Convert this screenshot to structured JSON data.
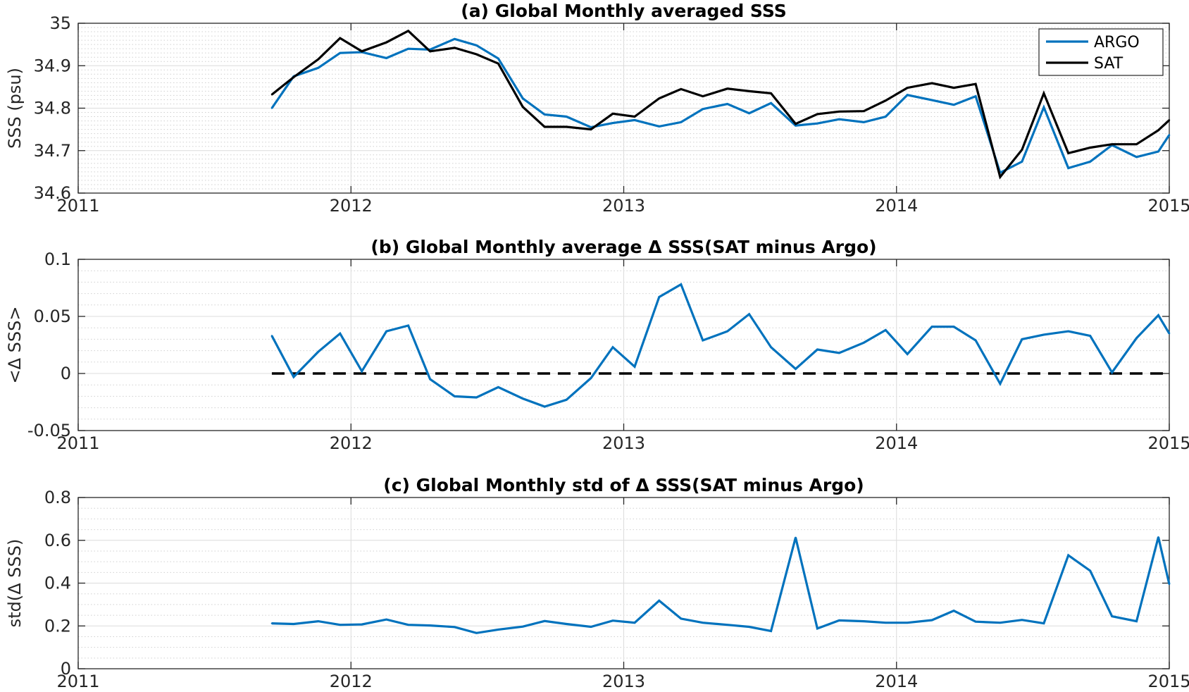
{
  "chart_data": [
    {
      "type": "line",
      "title": "(a) Global Monthly averaged SSS",
      "xlabel": "",
      "ylabel": "SSS (psu)",
      "xlim": [
        2011,
        2015
      ],
      "ylim": [
        34.6,
        35.0
      ],
      "xticks": [
        2011,
        2012,
        2013,
        2014,
        2015
      ],
      "xticklabels": [
        "2011",
        "2012",
        "2013",
        "2014",
        "2015"
      ],
      "yticks": [
        34.6,
        34.7,
        34.8,
        34.9,
        35.0
      ],
      "yticklabels": [
        "34.6",
        "34.7",
        "34.8",
        "34.9",
        "35"
      ],
      "grid": true,
      "legend": "top-right",
      "x": [
        2011.71,
        2011.79,
        2011.88,
        2011.96,
        2012.04,
        2012.13,
        2012.21,
        2012.29,
        2012.38,
        2012.46,
        2012.54,
        2012.63,
        2012.71,
        2012.79,
        2012.88,
        2012.96,
        2013.04,
        2013.13,
        2013.21,
        2013.29,
        2013.38,
        2013.46,
        2013.54,
        2013.63,
        2013.71,
        2013.79,
        2013.88,
        2013.96,
        2014.04,
        2014.13,
        2014.21,
        2014.29,
        2014.38,
        2014.46,
        2014.54,
        2014.63,
        2014.71,
        2014.79,
        2014.88,
        2014.96,
        2015.0
      ],
      "series": [
        {
          "name": "ARGO",
          "color": "#0072BD",
          "values": [
            34.8,
            34.875,
            34.895,
            34.93,
            34.932,
            34.918,
            34.94,
            34.938,
            34.963,
            34.948,
            34.917,
            34.823,
            34.785,
            34.78,
            34.755,
            34.765,
            34.772,
            34.757,
            34.767,
            34.798,
            34.81,
            34.788,
            34.812,
            34.759,
            34.764,
            34.774,
            34.767,
            34.78,
            34.831,
            34.819,
            34.808,
            34.828,
            34.648,
            34.674,
            34.802,
            34.659,
            34.674,
            34.713,
            34.685,
            34.698,
            34.737
          ]
        },
        {
          "name": "SAT",
          "color": "#000000",
          "values": [
            34.832,
            34.873,
            34.915,
            34.965,
            34.934,
            34.955,
            34.982,
            34.934,
            34.942,
            34.927,
            34.905,
            34.803,
            34.756,
            34.756,
            34.75,
            34.787,
            34.78,
            34.823,
            34.845,
            34.828,
            34.846,
            34.84,
            34.835,
            34.763,
            34.786,
            34.792,
            34.793,
            34.818,
            34.848,
            34.859,
            34.848,
            34.857,
            34.638,
            34.702,
            34.835,
            34.694,
            34.707,
            34.715,
            34.715,
            34.748,
            34.772
          ]
        }
      ]
    },
    {
      "type": "line",
      "title": "(b) Global Monthly average Δ SSS(SAT minus Argo)",
      "xlabel": "",
      "ylabel": "<Δ SSS>",
      "xlim": [
        2011,
        2015
      ],
      "ylim": [
        -0.05,
        0.1
      ],
      "xticks": [
        2011,
        2012,
        2013,
        2014,
        2015
      ],
      "xticklabels": [
        "2011",
        "2012",
        "2013",
        "2014",
        "2015"
      ],
      "yticks": [
        -0.05,
        0,
        0.05,
        0.1
      ],
      "yticklabels": [
        "-0.05",
        "0",
        "0.05",
        "0.1"
      ],
      "grid": true,
      "x": [
        2011.71,
        2011.79,
        2011.88,
        2011.96,
        2012.04,
        2012.13,
        2012.21,
        2012.29,
        2012.38,
        2012.46,
        2012.54,
        2012.63,
        2012.71,
        2012.79,
        2012.88,
        2012.96,
        2013.04,
        2013.13,
        2013.21,
        2013.29,
        2013.38,
        2013.46,
        2013.54,
        2013.63,
        2013.71,
        2013.79,
        2013.88,
        2013.96,
        2014.04,
        2014.13,
        2014.21,
        2014.29,
        2014.38,
        2014.46,
        2014.54,
        2014.63,
        2014.71,
        2014.79,
        2014.88,
        2014.96,
        2015.0
      ],
      "series": [
        {
          "color": "#0072BD",
          "values": [
            0.033,
            -0.003,
            0.019,
            0.035,
            0.002,
            0.037,
            0.042,
            -0.005,
            -0.02,
            -0.021,
            -0.012,
            -0.022,
            -0.029,
            -0.023,
            -0.004,
            0.023,
            0.006,
            0.067,
            0.078,
            0.029,
            0.037,
            0.052,
            0.023,
            0.004,
            0.021,
            0.018,
            0.027,
            0.038,
            0.017,
            0.041,
            0.041,
            0.029,
            -0.009,
            0.03,
            0.034,
            0.037,
            0.033,
            0.001,
            0.031,
            0.051,
            0.035
          ]
        }
      ],
      "reference_line": {
        "y": 0,
        "x_from": 2011.71,
        "x_to": 2015.0,
        "style": "dashed",
        "color": "#000000"
      }
    },
    {
      "type": "line",
      "title": "(c) Global Monthly std of Δ SSS(SAT minus Argo)",
      "xlabel": "",
      "ylabel": "std(Δ SSS)",
      "xlim": [
        2011,
        2015
      ],
      "ylim": [
        0,
        0.8
      ],
      "xticks": [
        2011,
        2012,
        2013,
        2014,
        2015
      ],
      "xticklabels": [
        "2011",
        "2012",
        "2013",
        "2014",
        "2015"
      ],
      "yticks": [
        0,
        0.2,
        0.4,
        0.6,
        0.8
      ],
      "yticklabels": [
        "0",
        "0.2",
        "0.4",
        "0.6",
        "0.8"
      ],
      "grid": true,
      "x": [
        2011.71,
        2011.79,
        2011.88,
        2011.96,
        2012.04,
        2012.13,
        2012.21,
        2012.29,
        2012.38,
        2012.46,
        2012.54,
        2012.63,
        2012.71,
        2012.79,
        2012.88,
        2012.96,
        2013.04,
        2013.13,
        2013.21,
        2013.29,
        2013.38,
        2013.46,
        2013.54,
        2013.63,
        2013.71,
        2013.79,
        2013.88,
        2013.96,
        2014.04,
        2014.13,
        2014.21,
        2014.29,
        2014.38,
        2014.46,
        2014.54,
        2014.63,
        2014.71,
        2014.79,
        2014.88,
        2014.96,
        2015.0
      ],
      "series": [
        {
          "color": "#0072BD",
          "values": [
            0.212,
            0.209,
            0.222,
            0.205,
            0.207,
            0.23,
            0.205,
            0.202,
            0.195,
            0.167,
            0.183,
            0.197,
            0.223,
            0.209,
            0.196,
            0.225,
            0.215,
            0.318,
            0.234,
            0.215,
            0.205,
            0.196,
            0.176,
            0.613,
            0.188,
            0.226,
            0.222,
            0.215,
            0.215,
            0.227,
            0.271,
            0.22,
            0.215,
            0.228,
            0.212,
            0.53,
            0.458,
            0.245,
            0.222,
            0.615,
            0.395
          ]
        }
      ]
    }
  ]
}
